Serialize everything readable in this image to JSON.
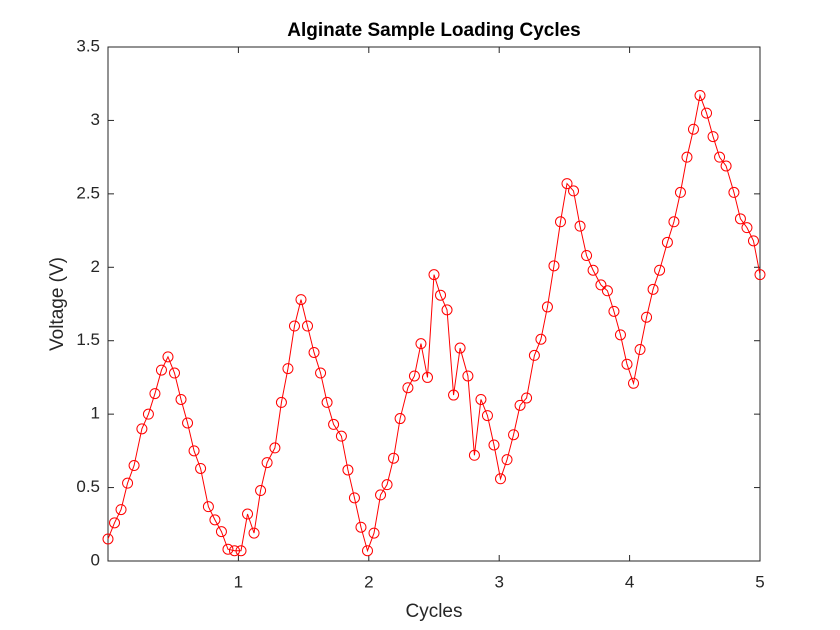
{
  "chart_data": {
    "type": "line",
    "title": "Alginate Sample Loading Cycles",
    "x_label": "Cycles",
    "y_label": "Voltage (V)",
    "x": [
      0,
      0.05,
      0.1,
      0.15,
      0.2,
      0.26,
      0.31,
      0.36,
      0.41,
      0.46,
      0.51,
      0.56,
      0.61,
      0.66,
      0.71,
      0.77,
      0.82,
      0.87,
      0.92,
      0.97,
      1.02,
      1.07,
      1.12,
      1.17,
      1.22,
      1.28,
      1.33,
      1.38,
      1.43,
      1.48,
      1.53,
      1.58,
      1.63,
      1.68,
      1.73,
      1.79,
      1.84,
      1.89,
      1.94,
      1.99,
      2.04,
      2.09,
      2.14,
      2.19,
      2.24,
      2.3,
      2.35,
      2.4,
      2.45,
      2.5,
      2.55,
      2.6,
      2.65,
      2.7,
      2.76,
      2.81,
      2.86,
      2.91,
      2.96,
      3.01,
      3.06,
      3.11,
      3.16,
      3.21,
      3.27,
      3.32,
      3.37,
      3.42,
      3.47,
      3.52,
      3.57,
      3.62,
      3.67,
      3.72,
      3.78,
      3.83,
      3.88,
      3.93,
      3.98,
      4.03,
      4.08,
      4.13,
      4.18,
      4.23,
      4.29,
      4.34,
      4.39,
      4.44,
      4.49,
      4.54,
      4.59,
      4.64,
      4.69,
      4.74,
      4.8,
      4.85,
      4.9,
      4.95,
      5.0
    ],
    "series": [
      {
        "color": "#ff0000",
        "marker": "circle",
        "values": [
          0.15,
          0.26,
          0.35,
          0.53,
          0.65,
          0.9,
          1.0,
          1.14,
          1.3,
          1.39,
          1.28,
          1.1,
          0.94,
          0.75,
          0.63,
          0.37,
          0.28,
          0.2,
          0.08,
          0.07,
          0.07,
          0.32,
          0.19,
          0.48,
          0.67,
          0.77,
          1.08,
          1.31,
          1.6,
          1.78,
          1.6,
          1.42,
          1.28,
          1.08,
          0.93,
          0.85,
          0.62,
          0.43,
          0.23,
          0.07,
          0.19,
          0.45,
          0.52,
          0.7,
          0.97,
          1.18,
          1.26,
          1.48,
          1.25,
          1.95,
          1.81,
          1.71,
          1.13,
          1.45,
          1.26,
          0.72,
          1.1,
          0.99,
          0.79,
          0.56,
          0.69,
          0.86,
          1.06,
          1.11,
          1.4,
          1.51,
          1.73,
          2.01,
          2.31,
          2.57,
          2.52,
          2.28,
          2.08,
          1.98,
          1.88,
          1.84,
          1.7,
          1.54,
          1.34,
          1.21,
          1.44,
          1.66,
          1.85,
          1.98,
          2.17,
          2.31,
          2.51,
          2.75,
          2.94,
          3.17,
          3.05,
          2.89,
          2.75,
          2.69,
          2.51,
          2.33,
          2.27,
          2.18,
          1.95
        ]
      }
    ],
    "xlim": [
      0,
      5
    ],
    "xticks": [
      1,
      2,
      3,
      4,
      5
    ],
    "ylim": [
      0,
      3.5
    ],
    "yticks": [
      0,
      0.5,
      1,
      1.5,
      2,
      2.5,
      3,
      3.5
    ]
  }
}
